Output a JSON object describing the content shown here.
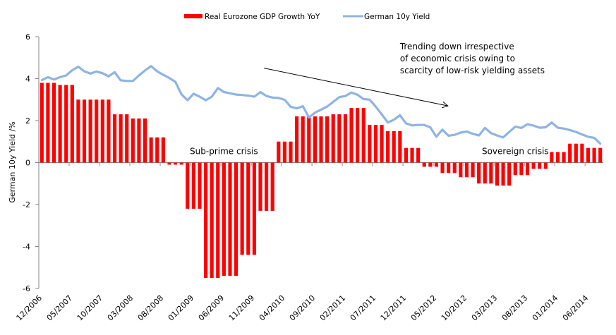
{
  "chart_data": {
    "type": "bar+line",
    "title": "",
    "xlabel": "",
    "ylabel": "German 10y Yield /%",
    "ylim": [
      -6,
      6
    ],
    "yticks": [
      6,
      4,
      2,
      0,
      -2,
      -4,
      -6
    ],
    "grid": false,
    "legend_position": "top-center",
    "x_tick_labels": [
      "12/2006",
      "05/2007",
      "10/2007",
      "03/2008",
      "08/2008",
      "01/2009",
      "06/2009",
      "11/2009",
      "04/2010",
      "09/2010",
      "02/2011",
      "07/2011",
      "12/2011",
      "05/2012",
      "10/2012",
      "03/2013",
      "08/2013",
      "01/2014",
      "06/2014"
    ],
    "x_tick_interval_months": 5,
    "x_start": "12/2006",
    "x_end": "08/2014",
    "series": [
      {
        "name": "Real Eurozone GDP Growth YoY",
        "type": "bar",
        "color": "#ff0000",
        "values": [
          3.8,
          3.8,
          3.8,
          3.7,
          3.7,
          3.7,
          3.0,
          3.0,
          3.0,
          3.0,
          3.0,
          3.0,
          2.3,
          2.3,
          2.3,
          2.1,
          2.1,
          2.1,
          1.2,
          1.2,
          1.2,
          -0.1,
          -0.1,
          -0.1,
          -2.2,
          -2.2,
          -2.2,
          -5.5,
          -5.5,
          -5.5,
          -5.4,
          -5.4,
          -5.4,
          -4.4,
          -4.4,
          -4.4,
          -2.3,
          -2.3,
          -2.3,
          1.0,
          1.0,
          1.0,
          2.2,
          2.2,
          2.2,
          2.2,
          2.2,
          2.2,
          2.3,
          2.3,
          2.3,
          2.6,
          2.6,
          2.6,
          1.8,
          1.8,
          1.8,
          1.5,
          1.5,
          1.5,
          0.7,
          0.7,
          0.7,
          -0.2,
          -0.2,
          -0.2,
          -0.5,
          -0.5,
          -0.5,
          -0.7,
          -0.7,
          -0.7,
          -1.0,
          -1.0,
          -1.0,
          -1.1,
          -1.1,
          -1.1,
          -0.6,
          -0.6,
          -0.6,
          -0.3,
          -0.3,
          -0.3,
          0.5,
          0.5,
          0.5,
          0.9,
          0.9,
          0.9,
          0.7,
          0.7,
          0.7
        ]
      },
      {
        "name": "German 10y Yield",
        "type": "line",
        "color": "#8eb4e3",
        "values": [
          3.93,
          4.07,
          3.96,
          4.07,
          4.15,
          4.4,
          4.57,
          4.35,
          4.24,
          4.34,
          4.26,
          4.11,
          4.31,
          3.92,
          3.89,
          3.89,
          4.15,
          4.39,
          4.6,
          4.35,
          4.18,
          4.03,
          3.85,
          3.25,
          2.97,
          3.28,
          3.14,
          2.97,
          3.14,
          3.55,
          3.36,
          3.3,
          3.24,
          3.22,
          3.19,
          3.14,
          3.36,
          3.17,
          3.1,
          3.08,
          2.99,
          2.66,
          2.58,
          2.69,
          2.15,
          2.38,
          2.52,
          2.67,
          2.89,
          3.12,
          3.17,
          3.34,
          3.23,
          3.03,
          3.0,
          2.67,
          2.3,
          1.91,
          2.04,
          2.26,
          1.87,
          1.77,
          1.79,
          1.79,
          1.68,
          1.23,
          1.57,
          1.28,
          1.32,
          1.43,
          1.48,
          1.37,
          1.29,
          1.65,
          1.4,
          1.29,
          1.2,
          1.46,
          1.71,
          1.65,
          1.83,
          1.76,
          1.66,
          1.68,
          1.91,
          1.66,
          1.62,
          1.55,
          1.46,
          1.34,
          1.23,
          1.18,
          0.9
        ]
      }
    ],
    "annotations": [
      {
        "text": "Sub-prime crisis",
        "anchor_month_index": 30,
        "y": 0.4
      },
      {
        "text": "Sovereign crisis",
        "anchor_month_index": 78,
        "y": 0.4
      },
      {
        "lines": [
          "Trending down irrespective",
          "of economic crisis owing to",
          "scarcity of low-risk yielding assets"
        ],
        "anchor_month_index": 59,
        "y": 5.4
      },
      {
        "type": "arrow",
        "from": {
          "month_index": 36.6,
          "y": 4.5
        },
        "to": {
          "month_index": 66.9,
          "y": 2.7
        }
      }
    ]
  }
}
